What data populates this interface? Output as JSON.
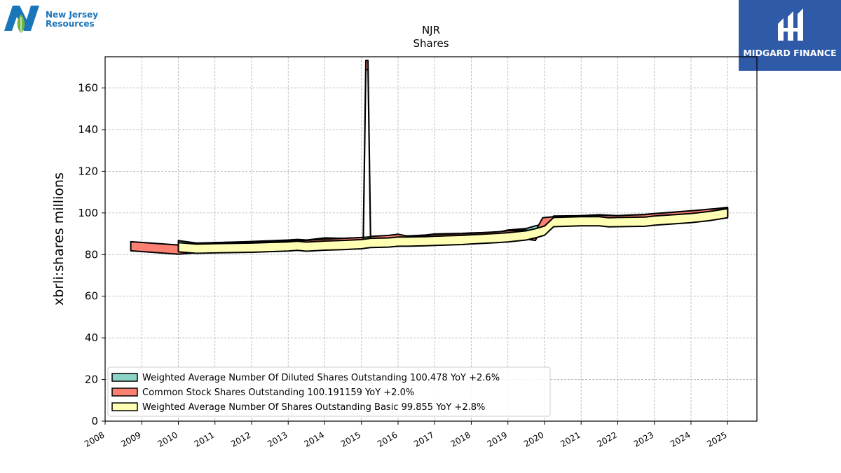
{
  "logos": {
    "left": {
      "line1": "New Jersey",
      "line2": "Resources"
    },
    "right": {
      "name": "MIDGARD FINANCE"
    }
  },
  "chart_data": {
    "type": "area",
    "title": "NJR",
    "subtitle": "Shares",
    "xlabel": "",
    "ylabel": "xbrli:shares millions",
    "xlim": [
      2008.0,
      2025.8
    ],
    "ylim": [
      0,
      175
    ],
    "x_ticks": [
      "2008",
      "2009",
      "2010",
      "2011",
      "2012",
      "2013",
      "2014",
      "2015",
      "2016",
      "2017",
      "2018",
      "2019",
      "2020",
      "2021",
      "2022",
      "2023",
      "2024",
      "2025"
    ],
    "y_ticks": [
      0,
      20,
      40,
      60,
      80,
      100,
      120,
      140,
      160
    ],
    "grid": true,
    "legend_position": "lower-left",
    "series": [
      {
        "name": "Weighted Average Number Of Diluted Shares Outstanding",
        "legend_label": "Weighted Average Number Of Diluted Shares Outstanding  100.478 YoY +2.6%",
        "color": "#8dd3c7",
        "x": [
          2010.0,
          2010.5,
          2011.0,
          2012.0,
          2013.0,
          2013.25,
          2013.5,
          2014.0,
          2014.5,
          2015.0,
          2015.25,
          2015.75,
          2016.0,
          2016.25,
          2016.75,
          2017.0,
          2017.75,
          2018.0,
          2018.75,
          2019.0,
          2019.5,
          2019.75,
          2020.0,
          2020.25,
          2021.0,
          2021.5,
          2022.0,
          2022.75,
          2023.0,
          2024.0,
          2024.5,
          2025.0
        ],
        "values": [
          84.5,
          83.3,
          83.5,
          84.1,
          84.8,
          85.1,
          84.8,
          85.8,
          85.6,
          86.0,
          86.3,
          86.5,
          86.8,
          86.7,
          87.2,
          87.7,
          88.0,
          88.2,
          88.6,
          89.6,
          90.3,
          91.6,
          92.6,
          96.3,
          96.5,
          96.9,
          96.5,
          97.1,
          97.5,
          98.8,
          99.5,
          100.478
        ]
      },
      {
        "name": "Common Stock Shares Outstanding",
        "legend_label": "Common Stock Shares Outstanding  100.191159 YoY +2.0%",
        "color": "#fb8072",
        "x": [
          2008.7,
          2010.0,
          2010.5,
          2011.0,
          2012.0,
          2012.5,
          2013.0,
          2013.5,
          2014.0,
          2014.5,
          2015.05,
          2015.12,
          2015.18,
          2015.25,
          2015.75,
          2016.0,
          2016.25,
          2016.75,
          2017.0,
          2017.75,
          2018.0,
          2018.75,
          2019.0,
          2019.5,
          2019.75,
          2019.95,
          2020.25,
          2021.0,
          2021.5,
          2022.0,
          2022.75,
          2023.0,
          2024.0,
          2024.5,
          2025.0
        ],
        "values": [
          84.0,
          82.4,
          83.0,
          83.6,
          83.9,
          83.8,
          84.3,
          84.6,
          85.2,
          85.6,
          86.0,
          171.0,
          171.0,
          86.5,
          87.0,
          87.6,
          86.7,
          87.0,
          87.5,
          87.8,
          88.0,
          88.8,
          89.2,
          89.6,
          89.0,
          95.5,
          96.0,
          96.5,
          96.7,
          96.5,
          97.0,
          97.4,
          98.8,
          99.6,
          100.191159
        ]
      },
      {
        "name": "Weighted Average Number Of Shares Outstanding Basic",
        "legend_label": "Weighted Average Number Of Shares Outstanding Basic  99.855 YoY +2.8%",
        "color": "#ffffb3",
        "x": [
          2010.0,
          2010.5,
          2011.0,
          2012.0,
          2013.0,
          2013.25,
          2013.5,
          2014.0,
          2014.5,
          2015.0,
          2015.25,
          2015.75,
          2016.0,
          2016.25,
          2016.75,
          2017.0,
          2017.75,
          2018.0,
          2018.75,
          2019.0,
          2019.5,
          2019.75,
          2020.0,
          2020.25,
          2021.0,
          2021.5,
          2021.75,
          2022.0,
          2022.75,
          2023.0,
          2024.0,
          2024.5,
          2025.0
        ],
        "values": [
          83.5,
          82.8,
          83.0,
          83.3,
          83.9,
          84.2,
          83.8,
          84.3,
          84.6,
          85.0,
          85.6,
          85.8,
          86.2,
          86.2,
          86.4,
          86.6,
          87.0,
          87.3,
          88.0,
          88.3,
          89.2,
          90.2,
          91.5,
          95.6,
          96.0,
          96.0,
          95.5,
          95.6,
          95.8,
          96.3,
          97.5,
          98.5,
          99.855
        ]
      }
    ]
  }
}
